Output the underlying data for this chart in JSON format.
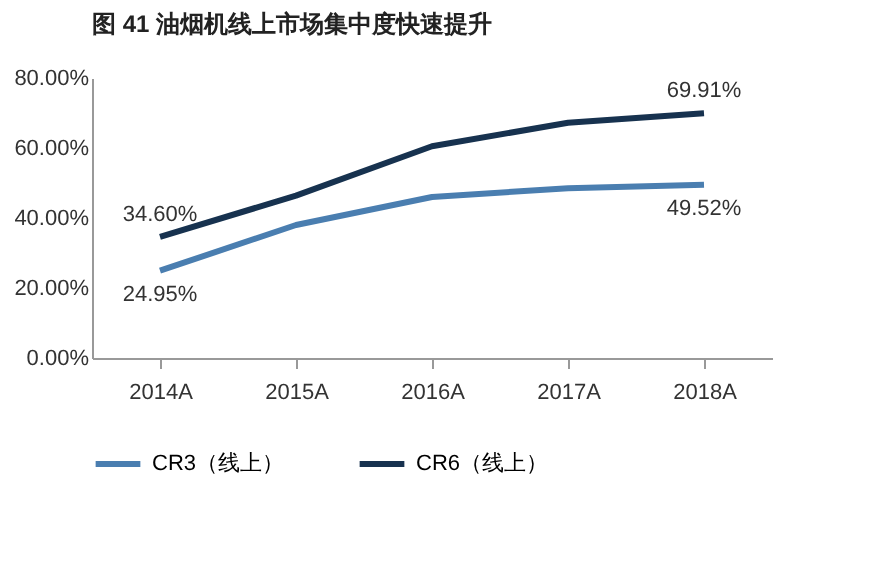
{
  "chart_data": {
    "type": "line",
    "title": "图 41  油烟机线上市场集中度快速提升",
    "categories": [
      "2014A",
      "2015A",
      "2016A",
      "2017A",
      "2018A"
    ],
    "series": [
      {
        "name": "CR3（线上）",
        "color": "#4a7eb0",
        "values": [
          24.95,
          38,
          46,
          48.5,
          49.52
        ],
        "value_labels": [
          "24.95%",
          null,
          null,
          null,
          "49.52%"
        ]
      },
      {
        "name": "CR6（线上）",
        "color": "#17324f",
        "values": [
          34.6,
          46.4,
          60.5,
          67.2,
          69.91
        ],
        "value_labels": [
          "34.60%",
          null,
          null,
          null,
          "69.91%"
        ]
      }
    ],
    "ylim": [
      0,
      80
    ],
    "yticks": [
      {
        "value": 0,
        "label": "0.00%"
      },
      {
        "value": 20,
        "label": "20.00%"
      },
      {
        "value": 40,
        "label": "40.00%"
      },
      {
        "value": 60,
        "label": "60.00%"
      },
      {
        "value": 80,
        "label": "80.00%"
      }
    ],
    "grid": false,
    "legend": "bottom"
  }
}
